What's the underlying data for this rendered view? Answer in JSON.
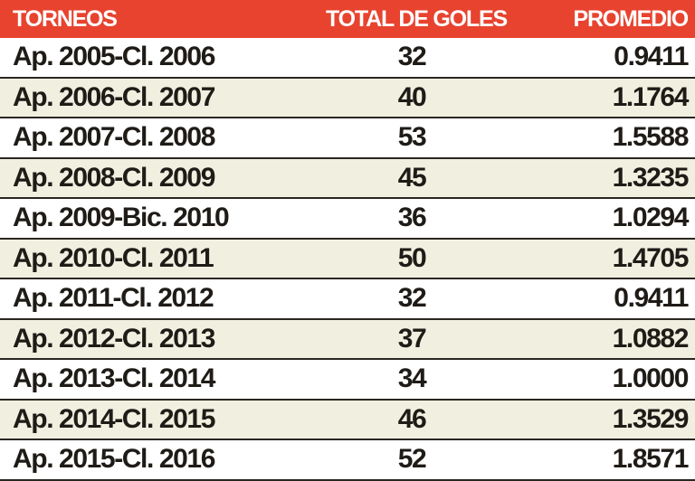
{
  "chart_data": {
    "type": "table",
    "columns": [
      "TORNEOS",
      "TOTAL DE GOLES",
      "PROMEDIO"
    ],
    "rows": [
      [
        "Ap. 2005-Cl. 2006",
        "32",
        "0.9411"
      ],
      [
        "Ap. 2006-Cl. 2007",
        "40",
        "1.1764"
      ],
      [
        "Ap. 2007-Cl. 2008",
        "53",
        "1.5588"
      ],
      [
        "Ap. 2008-Cl. 2009",
        "45",
        "1.3235"
      ],
      [
        "Ap. 2009-Bic. 2010",
        "36",
        "1.0294"
      ],
      [
        "Ap. 2010-Cl. 2011",
        "50",
        "1.4705"
      ],
      [
        "Ap. 2011-Cl. 2012",
        "32",
        "0.9411"
      ],
      [
        "Ap. 2012-Cl. 2013",
        "37",
        "1.0882"
      ],
      [
        "Ap. 2013-Cl. 2014",
        "34",
        "1.0000"
      ],
      [
        "Ap. 2014-Cl. 2015",
        "46",
        "1.3529"
      ],
      [
        "Ap. 2015-Cl. 2016",
        "52",
        "1.8571"
      ]
    ],
    "colors": {
      "header": "#e8432f",
      "alt_row": "#f1f0e0",
      "text": "#1f1b17"
    }
  }
}
